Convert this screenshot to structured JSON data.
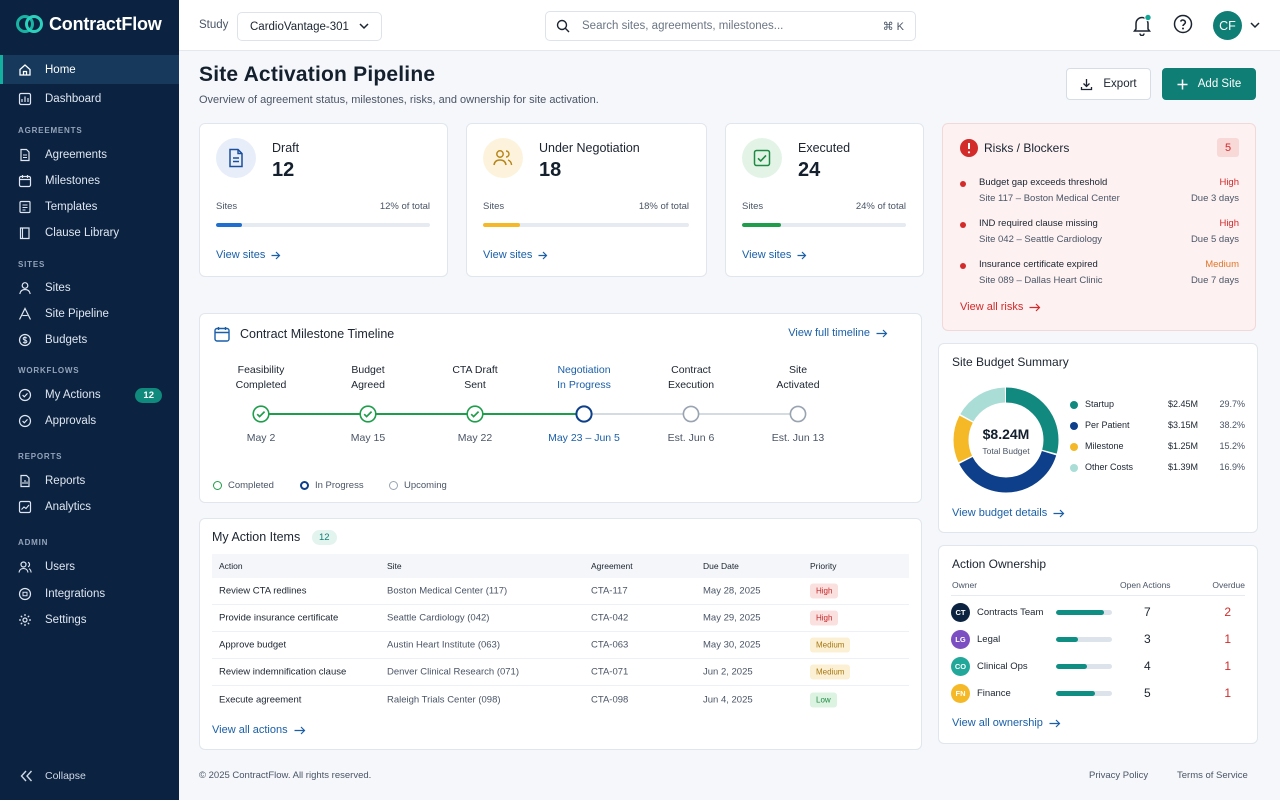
{
  "app": {
    "name": "ContractFlow"
  },
  "sidebar": {
    "home": "Home",
    "dashboard": "Dashboard",
    "sections": {
      "agreements": "AGREEMENTS",
      "sites": "SITES",
      "workflows": "WORKFLOWS",
      "reports": "REPORTS",
      "admin": "ADMIN"
    },
    "agreements": [
      "Agreements",
      "Milestones",
      "Templates",
      "Clause Library"
    ],
    "sites": [
      "Sites",
      "Site Pipeline",
      "Budgets"
    ],
    "workflows": {
      "my_actions": "My Actions",
      "my_actions_count": "12",
      "approvals": "Approvals"
    },
    "reports": [
      "Reports",
      "Analytics"
    ],
    "admin": [
      "Users",
      "Integrations",
      "Settings"
    ],
    "collapse": "Collapse"
  },
  "header": {
    "study_label": "Study",
    "study_value": "CardioVantage-301",
    "search_placeholder": "Search sites, agreements, milestones...",
    "search_shortcut": "⌘ K",
    "avatar": "CF"
  },
  "page": {
    "title": "Site Activation Pipeline",
    "subtitle": "Overview of agreement status, milestones, risks, and ownership for site activation.",
    "export": "Export",
    "add_site": "Add Site"
  },
  "stats": [
    {
      "title": "Draft",
      "value": "12",
      "sites_label": "Sites",
      "pct_label": "12% of total",
      "pct": 12,
      "link": "View sites",
      "color": "#1f6fd1",
      "icon": "document-icon"
    },
    {
      "title": "Under Negotiation",
      "value": "18",
      "sites_label": "Sites",
      "pct_label": "18% of total",
      "pct": 18,
      "link": "View sites",
      "color": "#f5b927",
      "icon": "people-icon"
    },
    {
      "title": "Executed",
      "value": "24",
      "sites_label": "Sites",
      "pct_label": "24% of total",
      "pct": 24,
      "link": "View sites",
      "color": "#1e9e4a",
      "icon": "check-square-icon"
    }
  ],
  "risks": {
    "title": "Risks / Blockers",
    "count": "5",
    "items": [
      {
        "title": "Budget gap exceeds threshold",
        "site": "Site 117 – Boston Medical Center",
        "priority": "High",
        "due": "Due 3 days"
      },
      {
        "title": "IND required clause missing",
        "site": "Site 042 – Seattle Cardiology",
        "priority": "High",
        "due": "Due 5 days"
      },
      {
        "title": "Insurance certificate expired",
        "site": "Site 089 – Dallas Heart Clinic",
        "priority": "Medium",
        "due": "Due 7 days"
      }
    ],
    "link": "View all risks"
  },
  "timeline": {
    "title": "Contract Milestone Timeline",
    "link": "View full timeline",
    "steps": [
      {
        "label1": "Feasibility",
        "label2": "Completed",
        "date": "May 2",
        "state": "completed"
      },
      {
        "label1": "Budget",
        "label2": "Agreed",
        "date": "May 15",
        "state": "completed"
      },
      {
        "label1": "CTA Draft",
        "label2": "Sent",
        "date": "May 22",
        "state": "completed"
      },
      {
        "label1": "Negotiation",
        "label2": "In Progress",
        "date": "May 23 – Jun 5",
        "state": "progress"
      },
      {
        "label1": "Contract",
        "label2": "Execution",
        "date": "Est. Jun 6",
        "state": "upcoming"
      },
      {
        "label1": "Site",
        "label2": "Activated",
        "date": "Est. Jun 13",
        "state": "upcoming"
      }
    ],
    "legend": {
      "completed": "Completed",
      "progress": "In Progress",
      "upcoming": "Upcoming"
    }
  },
  "actions": {
    "title": "My Action Items",
    "count": "12",
    "columns": [
      "Action",
      "Site",
      "Agreement",
      "Due Date",
      "Priority"
    ],
    "rows": [
      {
        "action": "Review CTA redlines",
        "site": "Boston Medical Center (117)",
        "agreement": "CTA-117",
        "due": "May 28, 2025",
        "priority": "High"
      },
      {
        "action": "Provide insurance certificate",
        "site": "Seattle Cardiology (042)",
        "agreement": "CTA-042",
        "due": "May 29, 2025",
        "priority": "High"
      },
      {
        "action": "Approve budget",
        "site": "Austin Heart Institute (063)",
        "agreement": "CTA-063",
        "due": "May 30, 2025",
        "priority": "Medium"
      },
      {
        "action": "Review indemnification clause",
        "site": "Denver Clinical Research (071)",
        "agreement": "CTA-071",
        "due": "Jun 2, 2025",
        "priority": "Medium"
      },
      {
        "action": "Execute agreement",
        "site": "Raleigh Trials Center (098)",
        "agreement": "CTA-098",
        "due": "Jun 4, 2025",
        "priority": "Low"
      }
    ],
    "link": "View all actions"
  },
  "budget": {
    "title": "Site Budget Summary",
    "total": "$8.24M",
    "total_label": "Total Budget",
    "items": [
      {
        "name": "Startup",
        "amount": "$2.45M",
        "pct": "29.7%",
        "value": 29.7,
        "color": "#12897e"
      },
      {
        "name": "Per Patient",
        "amount": "$3.15M",
        "pct": "38.2%",
        "value": 38.2,
        "color": "#0d3f8a"
      },
      {
        "name": "Milestone",
        "amount": "$1.25M",
        "pct": "15.2%",
        "value": 15.2,
        "color": "#f5b927"
      },
      {
        "name": "Other Costs",
        "amount": "$1.39M",
        "pct": "16.9%",
        "value": 16.9,
        "color": "#a9ddd6"
      }
    ],
    "link": "View budget details"
  },
  "ownership": {
    "title": "Action Ownership",
    "columns": [
      "Owner",
      "Open Actions",
      "Overdue"
    ],
    "rows": [
      {
        "initials": "CT",
        "name": "Contracts Team",
        "open": "7",
        "overdue": "2",
        "fill": 0.85,
        "color": "#0b2340"
      },
      {
        "initials": "LG",
        "name": "Legal",
        "open": "3",
        "overdue": "1",
        "fill": 0.4,
        "color": "#7b4fc2"
      },
      {
        "initials": "CO",
        "name": "Clinical Ops",
        "open": "4",
        "overdue": "1",
        "fill": 0.55,
        "color": "#22a89a"
      },
      {
        "initials": "FN",
        "name": "Finance",
        "open": "5",
        "overdue": "1",
        "fill": 0.7,
        "color": "#f5b927"
      }
    ],
    "link": "View all ownership"
  },
  "footer": {
    "copyright": "© 2025 ContractFlow.  All rights reserved.",
    "privacy": "Privacy Policy",
    "terms": "Terms of Service"
  }
}
